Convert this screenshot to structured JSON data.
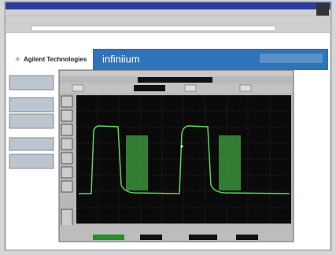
{
  "header": {
    "brand": "Agilent Technologies",
    "product": "infiniium"
  }
}
